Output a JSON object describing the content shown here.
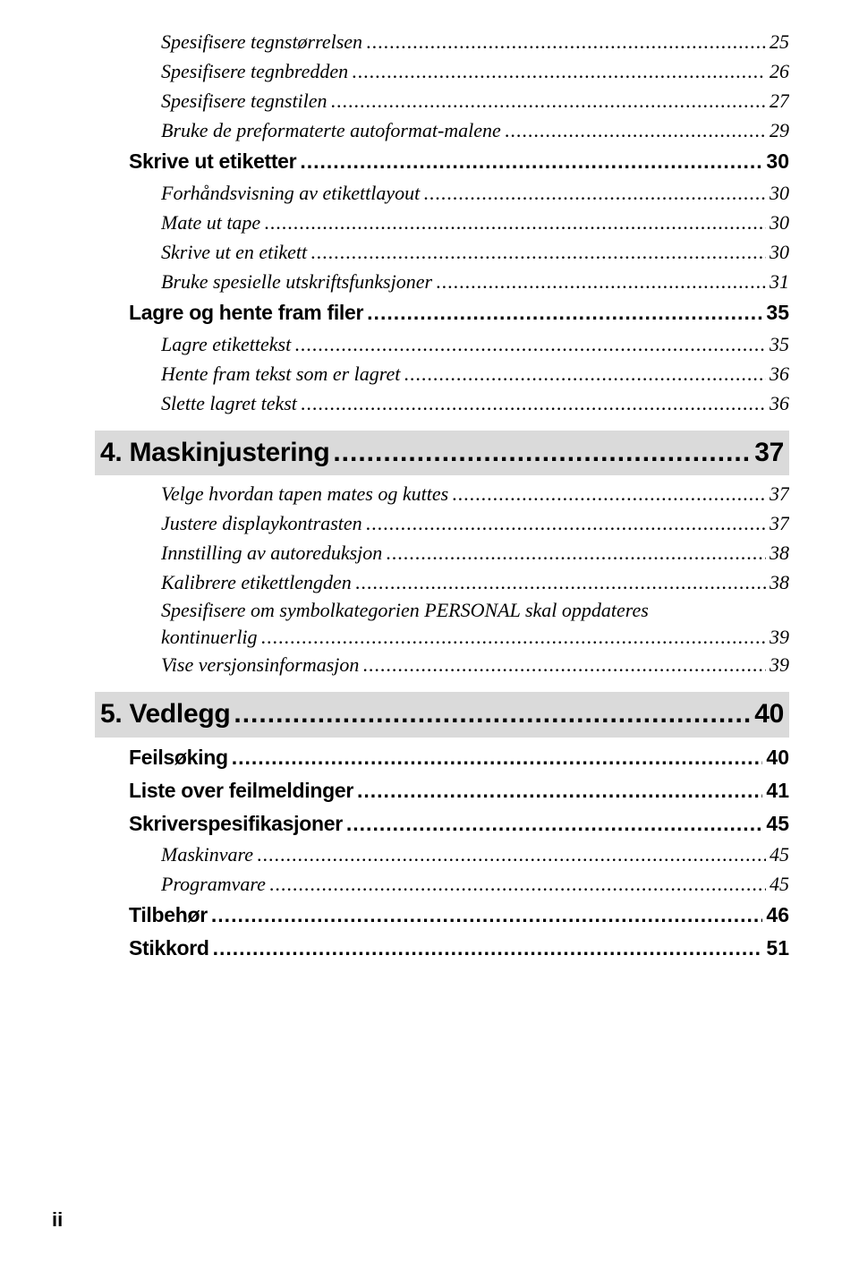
{
  "colors": {
    "bg": "#ffffff",
    "text": "#000000",
    "chapter_bg": "#dadada"
  },
  "typography": {
    "italic_size": 22,
    "boldsub_size": 23,
    "chapter_size": 30,
    "line_height": 1.5
  },
  "top_block": {
    "italic1": [
      {
        "label": "Spesifisere tegnstørrelsen",
        "page": "25"
      },
      {
        "label": "Spesifisere tegnbredden",
        "page": "26"
      },
      {
        "label": "Spesifisere tegnstilen",
        "page": "27"
      },
      {
        "label": "Bruke de preformaterte autoformat-malene",
        "page": "29"
      }
    ],
    "sub1": {
      "label": "Skrive ut etiketter",
      "page": "30"
    },
    "italic2": [
      {
        "label": "Forhåndsvisning av etikettlayout",
        "page": "30"
      },
      {
        "label": "Mate ut tape",
        "page": "30"
      },
      {
        "label": "Skrive ut en etikett",
        "page": "30"
      },
      {
        "label": "Bruke spesielle utskriftsfunksjoner",
        "page": "31"
      }
    ],
    "sub2": {
      "label": "Lagre og hente fram filer",
      "page": "35"
    },
    "italic3": [
      {
        "label": "Lagre etikettekst",
        "page": "35"
      },
      {
        "label": "Hente fram tekst som er lagret",
        "page": "36"
      },
      {
        "label": "Slette lagret tekst",
        "page": "36"
      }
    ]
  },
  "chapter4": {
    "label": "4. Maskinjustering",
    "page": "37"
  },
  "chapter4_items": {
    "italic": [
      {
        "label": "Velge hvordan tapen mates og kuttes",
        "page": "37"
      },
      {
        "label": "Justere displaykontrasten",
        "page": "37"
      },
      {
        "label": "Innstilling av autoreduksjon",
        "page": "38"
      },
      {
        "label": "Kalibrere etikettlengden",
        "page": "38"
      }
    ],
    "multiline": {
      "line1": "Spesifisere om symbolkategorien PERSONAL skal oppdateres",
      "line2": "kontinuerlig",
      "page": "39"
    },
    "italic_after": [
      {
        "label": "Vise versjonsinformasjon",
        "page": "39"
      }
    ]
  },
  "chapter5": {
    "label": "5. Vedlegg",
    "page": "40"
  },
  "chapter5_items": {
    "sub1": {
      "label": "Feilsøking",
      "page": "40"
    },
    "sub2": {
      "label": "Liste over feilmeldinger",
      "page": "41"
    },
    "sub3": {
      "label": "Skriverspesifikasjoner",
      "page": "45"
    },
    "italic": [
      {
        "label": "Maskinvare",
        "page": "45"
      },
      {
        "label": "Programvare",
        "page": "45"
      }
    ],
    "sub4": {
      "label": "Tilbehør",
      "page": "46"
    },
    "sub5": {
      "label": "Stikkord",
      "page": "51"
    }
  },
  "footer": {
    "roman": "ii"
  }
}
